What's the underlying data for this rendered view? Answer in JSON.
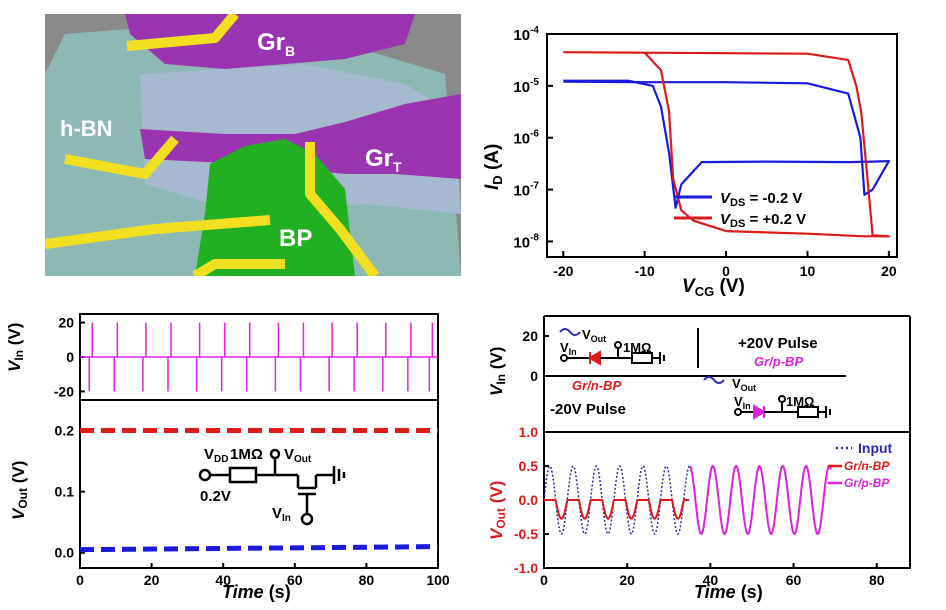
{
  "panel_a": {
    "labels": {
      "gr_b": "Gr",
      "gr_b_sub": "B",
      "hbn": "h-BN",
      "gr_t": "Gr",
      "gr_t_sub": "T",
      "bp": "BP"
    }
  },
  "chart_data": [
    {
      "id": "transfer",
      "type": "line",
      "xlabel": "V",
      "xlabel_sub": "CG",
      "xlabel_unit": " (V)",
      "ylabel": "I",
      "ylabel_sub": "D",
      "ylabel_unit": " (A)",
      "x_ticks": [
        "-20",
        "-10",
        "0",
        "10",
        "20"
      ],
      "y_ticks": [
        {
          "base": "10",
          "exp": "-4"
        },
        {
          "base": "10",
          "exp": "-5"
        },
        {
          "base": "10",
          "exp": "-6"
        },
        {
          "base": "10",
          "exp": "-7"
        },
        {
          "base": "10",
          "exp": "-8"
        }
      ],
      "xlim": [
        -22,
        21
      ],
      "ylim_log10": [
        -8.3,
        -4
      ],
      "yscale": "log",
      "legend": [
        {
          "pre": "V",
          "sub": "DS",
          "post": " = -0.2 V",
          "color": "#1a1adc"
        },
        {
          "pre": "V",
          "sub": "DS",
          "post": " = +0.2 V",
          "color": "#dc1a1a"
        }
      ],
      "series": [
        {
          "color": "#1a1adc",
          "x": [
            -20,
            -12,
            -9,
            -8,
            -7,
            -6.2,
            -5.5,
            -3,
            5,
            15,
            18,
            20,
            18,
            17,
            16.5,
            15,
            10,
            0,
            -10,
            -20
          ],
          "log10_y": [
            -4.9,
            -4.9,
            -5.0,
            -5.4,
            -6.3,
            -7.35,
            -6.9,
            -6.47,
            -6.46,
            -6.47,
            -6.46,
            -6.45,
            -7.0,
            -7.1,
            -6.0,
            -5.15,
            -4.95,
            -4.93,
            -4.93,
            -4.92
          ]
        },
        {
          "color": "#dc1a1a",
          "x": [
            -20,
            -10,
            -8,
            -7,
            -6.5,
            -5.5,
            -4,
            0,
            10,
            17,
            19,
            20,
            18,
            17.2,
            16.6,
            16,
            15,
            10,
            0,
            -10,
            -20
          ],
          "log10_y": [
            -4.35,
            -4.36,
            -4.7,
            -5.5,
            -6.8,
            -7.4,
            -7.6,
            -7.8,
            -7.85,
            -7.9,
            -7.9,
            -7.9,
            -7.88,
            -6.5,
            -5.5,
            -5.0,
            -4.5,
            -4.38,
            -4.37,
            -4.36,
            -4.35
          ]
        }
      ]
    },
    {
      "id": "vin_left",
      "type": "line",
      "ylabel": "V",
      "ylabel_sub": "In",
      "ylabel_unit": " (V)",
      "y_ticks": [
        "20",
        "0",
        "-20"
      ],
      "color": "#e020e0",
      "pulse_times": [
        3,
        10,
        18,
        25,
        33,
        40,
        47,
        55,
        62,
        70,
        77,
        85,
        92,
        98
      ],
      "pulse_amplitude": 20
    },
    {
      "id": "vout_left",
      "type": "line",
      "xlabel": "Time",
      "xlabel_unit": " (s)",
      "ylabel": "V",
      "ylabel_sub": "Out",
      "ylabel_unit": " (V)",
      "x_ticks": [
        "0",
        "20",
        "40",
        "60",
        "80",
        "100"
      ],
      "y_ticks": [
        "0.2",
        "0.1",
        "0.0"
      ],
      "xlim": [
        0,
        100
      ],
      "ylim": [
        -0.025,
        0.25
      ],
      "series": [
        {
          "color": "#dc1a1a",
          "style": "dashed",
          "x": [
            0,
            100
          ],
          "y": [
            0.2,
            0.2
          ]
        },
        {
          "color": "#1a1adc",
          "style": "dashed",
          "x": [
            0,
            100
          ],
          "y": [
            0.005,
            0.01
          ]
        }
      ],
      "circuit": {
        "vdd": "V",
        "vdd_sub": "DD",
        "res": "1MΩ",
        "vout": "V",
        "vout_sub": "Out",
        "bias": "0.2V",
        "vin": "V",
        "vin_sub": "In"
      }
    },
    {
      "id": "vin_right",
      "type": "line",
      "ylabel": "V",
      "ylabel_sub": "In",
      "ylabel_unit": " (V)",
      "y_ticks": [
        "20",
        "0"
      ],
      "annotations": {
        "neg_pulse": "-20V Pulse",
        "pos_pulse": "+20V Pulse",
        "n_label": "Gr/n-BP",
        "p_label": "Gr/p-BP",
        "res": "1MΩ",
        "vout": "V",
        "vout_sub": "Out",
        "vin": "V",
        "vin_sub": "In"
      }
    },
    {
      "id": "vout_right",
      "type": "line",
      "xlabel": "Time",
      "xlabel_unit": " (s)",
      "ylabel": "V",
      "ylabel_sub": "Out",
      "ylabel_unit": " (V)",
      "x_ticks": [
        "0",
        "20",
        "40",
        "60",
        "80"
      ],
      "y_ticks": [
        "1.0",
        "0.5",
        "0.0",
        "-0.5",
        "-1.0"
      ],
      "xlim": [
        0,
        88
      ],
      "ylim": [
        -1.0,
        1.0
      ],
      "period": 5.6,
      "amplitude": 0.5,
      "t_end": 69,
      "legend": [
        {
          "label": "Input",
          "color": "#2a2ab0",
          "style": "dotted"
        },
        {
          "label": "Gr/n-BP",
          "color": "#dc1a1a",
          "style": "solid"
        },
        {
          "label": "Gr/p-BP",
          "color": "#e020e0",
          "style": "solid"
        }
      ]
    }
  ]
}
